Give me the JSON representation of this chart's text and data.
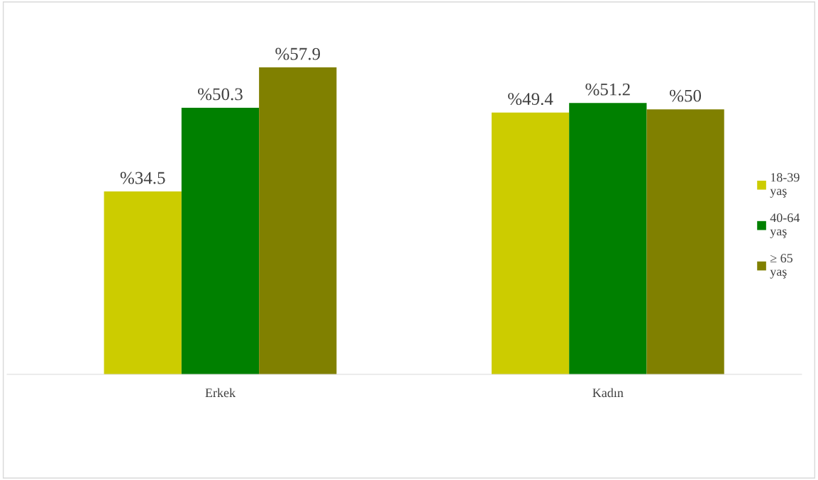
{
  "chart_data": {
    "type": "bar",
    "categories": [
      "Erkek",
      "Kadın"
    ],
    "legend": "right",
    "grid": false,
    "series": [
      {
        "name": "18-39\nyaş",
        "color": "#cccc00",
        "values": [
          34.5,
          49.4
        ],
        "value_labels": [
          "%34.5",
          "%49.4"
        ]
      },
      {
        "name": "40-64\nyaş",
        "color": "#008000",
        "values": [
          50.3,
          51.2
        ],
        "value_labels": [
          "%50.3",
          "%51.2"
        ]
      },
      {
        "name": "≥ 65\nyaş",
        "color": "#808000",
        "values": [
          57.9,
          50
        ],
        "value_labels": [
          "%57.9",
          "%50"
        ]
      }
    ]
  }
}
